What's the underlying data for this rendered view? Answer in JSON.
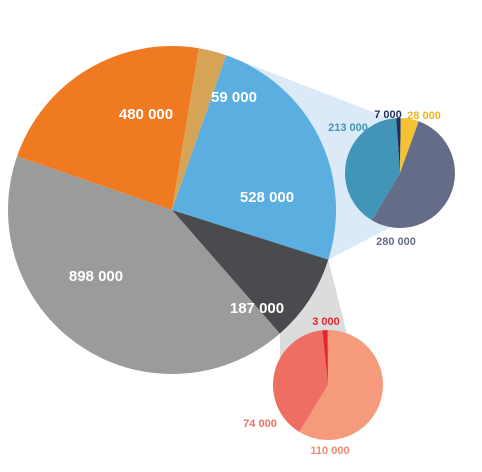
{
  "chart_data": [
    {
      "type": "pie",
      "title": "",
      "slices": [
        {
          "label": "528 000",
          "value": 528000,
          "color": "#5aaee0",
          "label_color": "#ffffff"
        },
        {
          "label": "187 000",
          "value": 187000,
          "color": "#4a4b4e",
          "label_color": "#ffffff"
        },
        {
          "label": "898 000",
          "value": 898000,
          "color": "#9a9c9c",
          "label_color": "#ffffff"
        },
        {
          "label": "480 000",
          "value": 480000,
          "color": "#f07a22",
          "label_color": "#ffffff"
        },
        {
          "label": "59 000",
          "value": 59000,
          "color": "#d6a457",
          "label_color": "#ffffff"
        }
      ]
    },
    {
      "type": "pie",
      "title": "",
      "breakdown_of": "528 000",
      "slices": [
        {
          "label": "7 000",
          "value": 7000,
          "color": "#1d2f5e",
          "label_color": "#1d2f5e"
        },
        {
          "label": "28 000",
          "value": 28000,
          "color": "#f6c233",
          "label_color": "#f0b51a"
        },
        {
          "label": "280 000",
          "value": 280000,
          "color": "#656c88",
          "label_color": "#656c88"
        },
        {
          "label": "213 000",
          "value": 213000,
          "color": "#4195b7",
          "label_color": "#4195b7"
        }
      ]
    },
    {
      "type": "pie",
      "title": "",
      "breakdown_of": "187 000",
      "slices": [
        {
          "label": "3 000",
          "value": 3000,
          "color": "#e2272d",
          "label_color": "#e2272d"
        },
        {
          "label": "110 000",
          "value": 110000,
          "color": "#f59a7b",
          "label_color": "#f08a6e"
        },
        {
          "label": "74 000",
          "value": 74000,
          "color": "#ef6e64",
          "label_color": "#ef6e64"
        }
      ]
    }
  ]
}
